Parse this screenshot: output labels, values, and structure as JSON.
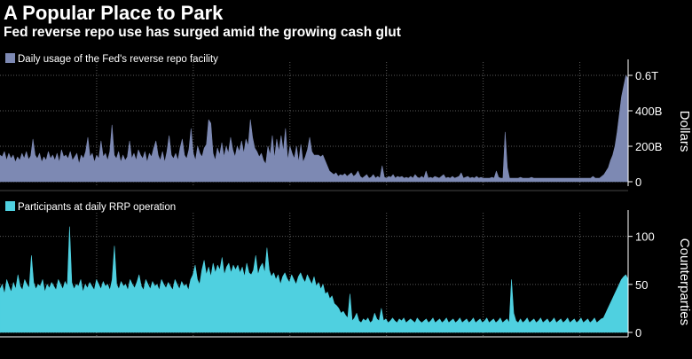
{
  "title": "A Popular Place to Park",
  "subtitle": "Fed reverse repo use has surged amid the growing cash glut",
  "colors": {
    "background": "#000000",
    "usage_series": "#7d89b3",
    "participants_series": "#4fd0e0",
    "grid": "#5a5a5a",
    "text": "#ffffff"
  },
  "chart_data": [
    {
      "type": "area",
      "legend": "Daily usage of the Fed's reverse repo facility",
      "ylabel": "Dollars",
      "yticks": [
        {
          "value": 0,
          "label": "0"
        },
        {
          "value": 200,
          "label": "200B"
        },
        {
          "value": 400,
          "label": "400B"
        },
        {
          "value": 600,
          "label": "0.6T"
        }
      ],
      "ylim": [
        0,
        650
      ],
      "x_units": "time index (unlabeled)",
      "grid": true,
      "series": [
        {
          "values": [
            150,
            140,
            170,
            120,
            160,
            130,
            150,
            110,
            140,
            120,
            160,
            130,
            170,
            125,
            145,
            240,
            150,
            130,
            160,
            110,
            140,
            120,
            170,
            130,
            150,
            120,
            160,
            110,
            180,
            140,
            150,
            130,
            170,
            120,
            140,
            160,
            100,
            150,
            130,
            170,
            250,
            140,
            160,
            110,
            150,
            130,
            230,
            140,
            160,
            120,
            170,
            320,
            150,
            130,
            170,
            110,
            150,
            120,
            140,
            230,
            130,
            160,
            120,
            180,
            150,
            130,
            170,
            110,
            160,
            140,
            190,
            230,
            150,
            120,
            170,
            110,
            170,
            260,
            150,
            130,
            160,
            120,
            190,
            240,
            150,
            130,
            180,
            300,
            160,
            120,
            200,
            160,
            140,
            190,
            210,
            350,
            330,
            160,
            120,
            190,
            150,
            220,
            140,
            200,
            160,
            250,
            180,
            140,
            200,
            170,
            230,
            160,
            240,
            200,
            350,
            250,
            190,
            170,
            140,
            160,
            120,
            100,
            200,
            150,
            260,
            130,
            240,
            170,
            260,
            170,
            300,
            120,
            200,
            160,
            130,
            200,
            110,
            210,
            110,
            140,
            180,
            250,
            170,
            150,
            150,
            150,
            140,
            150,
            120,
            90,
            60,
            50,
            40,
            50,
            30,
            40,
            35,
            45,
            30,
            40,
            50,
            30,
            40,
            60,
            30,
            20,
            30,
            40,
            20,
            25,
            40,
            20,
            30,
            20,
            90,
            25,
            20,
            30,
            25,
            40,
            20,
            30,
            25,
            30,
            20,
            25,
            20,
            30,
            20,
            40,
            25,
            20,
            30,
            20,
            60,
            20,
            25,
            20,
            30,
            25,
            20,
            30,
            40,
            20,
            25,
            20,
            30,
            20,
            25,
            30,
            50,
            20,
            25,
            30,
            20,
            25,
            20,
            30,
            20,
            25,
            20,
            20,
            20,
            20,
            25,
            20,
            60,
            25,
            20,
            20,
            280,
            80,
            20,
            20,
            20,
            20,
            20,
            25,
            20,
            20,
            20,
            20,
            25,
            20,
            20,
            20,
            20,
            20,
            20,
            20,
            20,
            20,
            20,
            20,
            20,
            20,
            20,
            20,
            20,
            20,
            20,
            20,
            20,
            20,
            20,
            20,
            20,
            20,
            20,
            20,
            30,
            20,
            20,
            20,
            30,
            40,
            60,
            80,
            120,
            150,
            200,
            280,
            380,
            480,
            540,
            600,
            580
          ]
        }
      ]
    },
    {
      "type": "area",
      "legend": "Participants at daily RRP operation",
      "ylabel": "Counterparties",
      "yticks": [
        {
          "value": 0,
          "label": "0"
        },
        {
          "value": 50,
          "label": "50"
        },
        {
          "value": 100,
          "label": "100"
        }
      ],
      "ylim": [
        0,
        120
      ],
      "x_units": "time index (unlabeled)",
      "grid": true,
      "series": [
        {
          "values": [
            45,
            50,
            40,
            55,
            48,
            42,
            52,
            45,
            60,
            48,
            44,
            55,
            50,
            46,
            80,
            52,
            45,
            50,
            48,
            55,
            42,
            50,
            46,
            52,
            48,
            44,
            55,
            50,
            45,
            53,
            48,
            110,
            52,
            45,
            50,
            48,
            55,
            42,
            50,
            46,
            52,
            48,
            44,
            55,
            50,
            45,
            53,
            48,
            50,
            44,
            55,
            90,
            50,
            45,
            53,
            48,
            50,
            44,
            55,
            50,
            46,
            52,
            60,
            48,
            44,
            55,
            50,
            45,
            53,
            48,
            50,
            44,
            55,
            50,
            46,
            52,
            48,
            44,
            55,
            50,
            45,
            53,
            48,
            50,
            44,
            55,
            60,
            70,
            55,
            50,
            65,
            75,
            60,
            68,
            58,
            72,
            62,
            70,
            65,
            78,
            60,
            68,
            72,
            62,
            70,
            65,
            70,
            62,
            68,
            58,
            72,
            62,
            60,
            65,
            80,
            60,
            68,
            72,
            62,
            88,
            65,
            58,
            62,
            55,
            60,
            50,
            58,
            62,
            56,
            52,
            60,
            55,
            50,
            58,
            62,
            56,
            52,
            60,
            55,
            50,
            58,
            48,
            52,
            45,
            50,
            40,
            42,
            35,
            38,
            30,
            28,
            25,
            20,
            22,
            18,
            15,
            40,
            12,
            15,
            20,
            12,
            10,
            14,
            12,
            15,
            10,
            12,
            20,
            14,
            12,
            25,
            12,
            14,
            10,
            12,
            15,
            12,
            10,
            14,
            12,
            15,
            10,
            12,
            14,
            12,
            10,
            15,
            12,
            10,
            12,
            14,
            10,
            12,
            15,
            10,
            12,
            14,
            10,
            12,
            15,
            10,
            12,
            14,
            10,
            12,
            15,
            10,
            12,
            14,
            10,
            12,
            15,
            10,
            12,
            14,
            10,
            12,
            15,
            10,
            12,
            14,
            10,
            12,
            15,
            10,
            12,
            14,
            10,
            55,
            20,
            12,
            10,
            14,
            10,
            12,
            15,
            10,
            12,
            14,
            10,
            12,
            15,
            10,
            12,
            14,
            10,
            12,
            15,
            10,
            12,
            14,
            10,
            12,
            15,
            10,
            12,
            14,
            10,
            12,
            15,
            10,
            12,
            14,
            10,
            12,
            15,
            10,
            12,
            14,
            15,
            20,
            25,
            30,
            35,
            40,
            45,
            50,
            55,
            58,
            60,
            55
          ]
        }
      ]
    }
  ]
}
